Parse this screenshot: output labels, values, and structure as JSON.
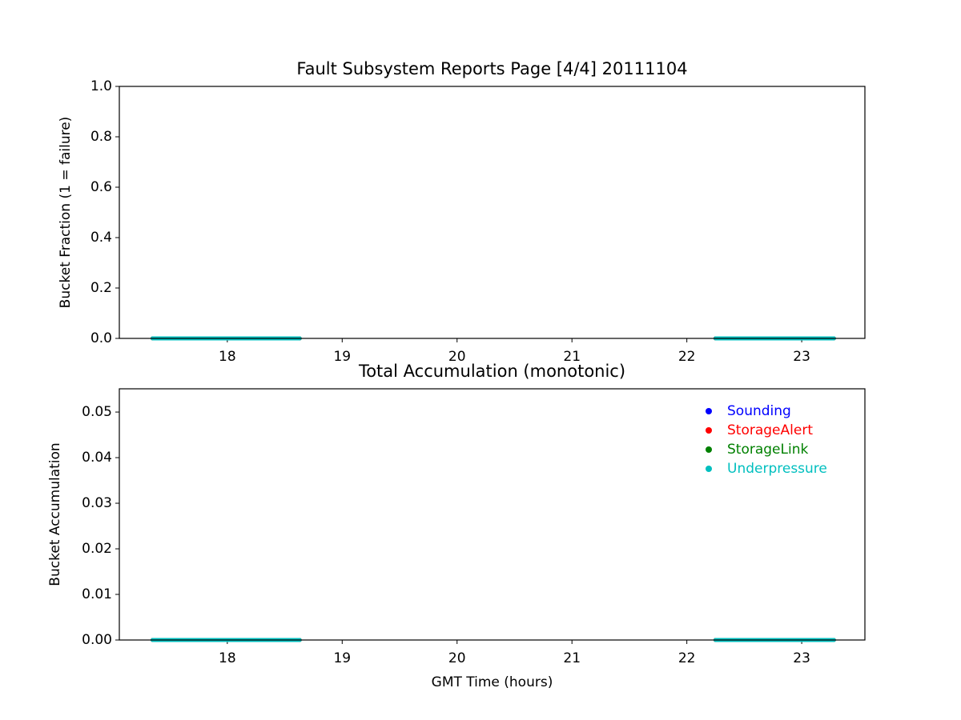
{
  "chart_data": [
    {
      "type": "line",
      "title": "Fault Subsystem Reports Page [4/4] 20111104",
      "y_label": "Bucket Fraction (1 = failure)",
      "x": [
        17.35,
        18.0,
        18.63,
        20.45,
        22.25,
        22.75,
        23.28
      ],
      "series": [
        {
          "color": "#0000ff",
          "values": [
            0,
            0,
            0,
            null,
            0,
            0,
            0
          ]
        },
        {
          "color": "#ff0000",
          "values": [
            0,
            0,
            0,
            null,
            0,
            0,
            0
          ]
        },
        {
          "color": "#008000",
          "values": [
            0,
            0,
            0,
            null,
            0,
            0,
            0
          ]
        },
        {
          "color": "#00bfbf",
          "values": [
            0,
            0,
            0,
            null,
            0,
            0,
            0
          ]
        }
      ],
      "xlim": [
        17.06,
        23.55
      ],
      "xticks": [
        18,
        19,
        20,
        21,
        22,
        23
      ],
      "ylim": [
        0,
        1
      ],
      "yticks": [
        {
          "value": 0,
          "label": "0.0"
        },
        0.2,
        0.4,
        0.6,
        0.8,
        {
          "value": 1,
          "label": "1.0"
        }
      ]
    },
    {
      "type": "line",
      "title": "Total Accumulation (monotonic)",
      "x_label": "GMT Time (hours)",
      "y_label": "Bucket Accumulation",
      "x": [
        17.35,
        18.0,
        18.63,
        20.45,
        22.25,
        22.75,
        23.28
      ],
      "series": [
        {
          "name": "Sounding",
          "color": "#0000ff",
          "values": [
            0,
            0,
            0,
            null,
            0,
            0,
            0
          ]
        },
        {
          "name": "StorageAlert",
          "color": "#ff0000",
          "values": [
            0,
            0,
            0,
            null,
            0,
            0,
            0
          ]
        },
        {
          "name": "StorageLink",
          "color": "#008000",
          "values": [
            0,
            0,
            0,
            null,
            0,
            0,
            0
          ]
        },
        {
          "name": "Underpressure",
          "color": "#00bfbf",
          "values": [
            0,
            0,
            0,
            null,
            0,
            0,
            0
          ]
        }
      ],
      "xlim": [
        17.06,
        23.55
      ],
      "xticks": [
        18,
        19,
        20,
        21,
        22,
        23
      ],
      "ylim": [
        0,
        0.0551
      ],
      "yticks": [
        {
          "value": 0,
          "label": "0.00"
        },
        {
          "value": 0.01,
          "label": "0.01"
        },
        {
          "value": 0.02,
          "label": "0.02"
        },
        {
          "value": 0.03,
          "label": "0.03"
        },
        {
          "value": 0.04,
          "label": "0.04"
        },
        {
          "value": 0.05,
          "label": "0.05"
        }
      ],
      "legend": "upper right"
    }
  ]
}
